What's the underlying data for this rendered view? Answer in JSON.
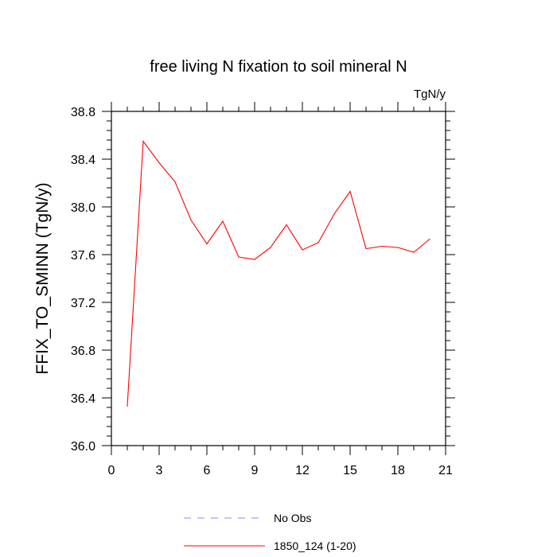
{
  "chart_data": {
    "type": "line",
    "title": "free living N fixation to soil mineral N",
    "units": "TgN/y",
    "xlabel": "",
    "ylabel": "FFIX_TO_SMINN  (TgN/y)",
    "xlim": [
      0,
      21
    ],
    "ylim": [
      36.0,
      38.8
    ],
    "x_major_ticks": [
      0,
      3,
      6,
      9,
      12,
      15,
      18,
      21
    ],
    "x_tick_labels": [
      "0",
      "3",
      "6",
      "9",
      "12",
      "15",
      "18",
      "21"
    ],
    "y_major_ticks": [
      36.0,
      36.4,
      36.8,
      37.2,
      37.6,
      38.0,
      38.4,
      38.8
    ],
    "y_tick_labels": [
      "36.0",
      "36.4",
      "36.8",
      "37.2",
      "37.6",
      "38.0",
      "38.4",
      "38.8"
    ],
    "x_minor_step": 1,
    "y_minor_step": 0.08,
    "grid": false,
    "legend_position": "bottom-center",
    "series": [
      {
        "name": "No Obs",
        "style": "dashed",
        "color": "#8888ff",
        "x": [],
        "values": []
      },
      {
        "name": "1850_124 (1-20)",
        "style": "solid",
        "color": "#ff0000",
        "x": [
          1,
          2,
          3,
          4,
          5,
          6,
          7,
          8,
          9,
          10,
          11,
          12,
          13,
          14,
          15,
          16,
          17,
          18,
          19,
          20
        ],
        "values": [
          36.33,
          38.55,
          38.37,
          38.21,
          37.89,
          37.69,
          37.88,
          37.58,
          37.56,
          37.66,
          37.85,
          37.64,
          37.7,
          37.94,
          38.13,
          37.65,
          37.67,
          37.66,
          37.62,
          37.73
        ]
      }
    ]
  }
}
